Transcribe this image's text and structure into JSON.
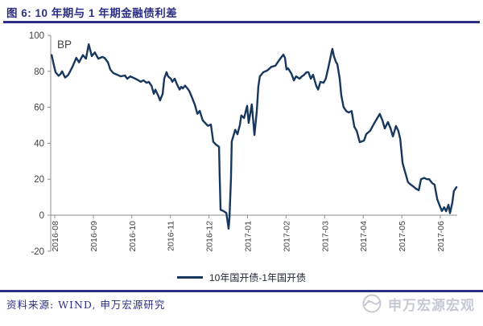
{
  "figure": {
    "title": "图 6: 10 年期与 1 年期金融债利差",
    "source_label": "资料来源: WIND, 申万宏源研究",
    "watermark_text": "申万宏源宏观"
  },
  "colors": {
    "accent_navy": "#2B2F84",
    "line_navy": "#17375E",
    "axis_gray": "#8C8C8C",
    "tick_label_gray": "#404040",
    "watermark_gray": "#C6C8D3"
  },
  "chart_data": {
    "type": "line",
    "title": "10 年期与 1 年期金融债利差",
    "unit_label": "BP",
    "ylabel": "BP",
    "ylim": [
      -20,
      100
    ],
    "yticks": [
      100,
      80,
      60,
      40,
      20,
      0,
      -20
    ],
    "grid": false,
    "x_tick_labels": [
      "2016-08",
      "2016-09",
      "2016-10",
      "2016-11",
      "2016-12",
      "2017-01",
      "2017-02",
      "2017-03",
      "2017-04",
      "2017-05",
      "2017-06"
    ],
    "legend_label": "10年国开债-1年国开债",
    "legend_position": "bottom-center",
    "series": [
      {
        "name": "10年国开债-1年国开债",
        "color": "#17375E",
        "x_unit": "months_since_2016_08",
        "points": [
          [
            -0.08,
            89
          ],
          [
            -0.04,
            85
          ],
          [
            0.02,
            79.5
          ],
          [
            0.1,
            77.5
          ],
          [
            0.15,
            78.5
          ],
          [
            0.19,
            80
          ],
          [
            0.27,
            76.5
          ],
          [
            0.35,
            78
          ],
          [
            0.46,
            82.5
          ],
          [
            0.56,
            87.5
          ],
          [
            0.63,
            85
          ],
          [
            0.73,
            89
          ],
          [
            0.81,
            87
          ],
          [
            0.88,
            95
          ],
          [
            0.96,
            88.5
          ],
          [
            1.04,
            90.5
          ],
          [
            1.13,
            87
          ],
          [
            1.23,
            88
          ],
          [
            1.29,
            87.5
          ],
          [
            1.38,
            85
          ],
          [
            1.44,
            81
          ],
          [
            1.52,
            79
          ],
          [
            1.63,
            78
          ],
          [
            1.71,
            77.2
          ],
          [
            1.82,
            77.7
          ],
          [
            1.88,
            75.9
          ],
          [
            1.96,
            77.2
          ],
          [
            2.05,
            76.3
          ],
          [
            2.17,
            75
          ],
          [
            2.23,
            74.2
          ],
          [
            2.3,
            75
          ],
          [
            2.38,
            73.6
          ],
          [
            2.44,
            74.1
          ],
          [
            2.51,
            72
          ],
          [
            2.57,
            67.5
          ],
          [
            2.61,
            69.8
          ],
          [
            2.69,
            66.1
          ],
          [
            2.73,
            63.8
          ],
          [
            2.8,
            67.5
          ],
          [
            2.84,
            75.9
          ],
          [
            2.9,
            79.5
          ],
          [
            2.94,
            77.2
          ],
          [
            3.01,
            75.9
          ],
          [
            3.05,
            74.2
          ],
          [
            3.11,
            75.9
          ],
          [
            3.17,
            72.8
          ],
          [
            3.24,
            69.8
          ],
          [
            3.28,
            71.4
          ],
          [
            3.32,
            70.5
          ],
          [
            3.38,
            72
          ],
          [
            3.44,
            70.5
          ],
          [
            3.49,
            69
          ],
          [
            3.55,
            66
          ],
          [
            3.63,
            61.6
          ],
          [
            3.7,
            56.4
          ],
          [
            3.76,
            58
          ],
          [
            3.84,
            52.7
          ],
          [
            3.9,
            51.3
          ],
          [
            3.97,
            49.7
          ],
          [
            4.05,
            50.4
          ],
          [
            4.11,
            40.8
          ],
          [
            4.18,
            39.3
          ],
          [
            4.26,
            38
          ],
          [
            4.28,
            20
          ],
          [
            4.3,
            3
          ],
          [
            4.36,
            2.5
          ],
          [
            4.45,
            1.2
          ],
          [
            4.51,
            -7.5
          ],
          [
            4.53,
            -2
          ],
          [
            4.57,
            20
          ],
          [
            4.59,
            41
          ],
          [
            4.68,
            47.5
          ],
          [
            4.74,
            45
          ],
          [
            4.8,
            50
          ],
          [
            4.84,
            55.5
          ],
          [
            4.91,
            54
          ],
          [
            4.99,
            60.8
          ],
          [
            5.03,
            51.3
          ],
          [
            5.11,
            61.6
          ],
          [
            5.18,
            44.6
          ],
          [
            5.24,
            58
          ],
          [
            5.28,
            71.4
          ],
          [
            5.32,
            77.2
          ],
          [
            5.41,
            79.5
          ],
          [
            5.51,
            80.4
          ],
          [
            5.62,
            82.5
          ],
          [
            5.72,
            83.1
          ],
          [
            5.82,
            86.2
          ],
          [
            5.93,
            89.3
          ],
          [
            5.97,
            87.5
          ],
          [
            6.01,
            81
          ],
          [
            6.05,
            81.7
          ],
          [
            6.14,
            78.6
          ],
          [
            6.2,
            75
          ],
          [
            6.26,
            77.2
          ],
          [
            6.35,
            75.9
          ],
          [
            6.41,
            77.2
          ],
          [
            6.47,
            78.1
          ],
          [
            6.53,
            79.5
          ],
          [
            6.58,
            79.5
          ],
          [
            6.64,
            75.9
          ],
          [
            6.7,
            78.1
          ],
          [
            6.78,
            72
          ],
          [
            6.83,
            69.8
          ],
          [
            6.89,
            74.1
          ],
          [
            6.97,
            73.6
          ],
          [
            7.03,
            75.9
          ],
          [
            7.1,
            82.5
          ],
          [
            7.18,
            90.6
          ],
          [
            7.2,
            92.5
          ],
          [
            7.24,
            88.4
          ],
          [
            7.29,
            85.3
          ],
          [
            7.33,
            83.9
          ],
          [
            7.39,
            75.9
          ],
          [
            7.43,
            66.8
          ],
          [
            7.49,
            60.1
          ],
          [
            7.56,
            57.9
          ],
          [
            7.62,
            57.1
          ],
          [
            7.7,
            57.9
          ],
          [
            7.77,
            49.1
          ],
          [
            7.83,
            46.9
          ],
          [
            7.91,
            40.6
          ],
          [
            8.02,
            41.5
          ],
          [
            8.08,
            45.1
          ],
          [
            8.18,
            46.9
          ],
          [
            8.29,
            51.3
          ],
          [
            8.43,
            56.3
          ],
          [
            8.5,
            52.7
          ],
          [
            8.56,
            48.2
          ],
          [
            8.64,
            51.8
          ],
          [
            8.71,
            48.2
          ],
          [
            8.77,
            43.8
          ],
          [
            8.85,
            49.6
          ],
          [
            8.91,
            46.9
          ],
          [
            8.96,
            42.4
          ],
          [
            9.02,
            29
          ],
          [
            9.08,
            24.5
          ],
          [
            9.16,
            18.4
          ],
          [
            9.23,
            17
          ],
          [
            9.29,
            16.1
          ],
          [
            9.37,
            14.7
          ],
          [
            9.44,
            13.9
          ],
          [
            9.5,
            20
          ],
          [
            9.58,
            20.7
          ],
          [
            9.65,
            20
          ],
          [
            9.71,
            20
          ],
          [
            9.79,
            17.8
          ],
          [
            9.85,
            17
          ],
          [
            9.92,
            8.8
          ],
          [
            10.0,
            4.4
          ],
          [
            10.04,
            2.3
          ],
          [
            10.1,
            4.4
          ],
          [
            10.15,
            2.2
          ],
          [
            10.21,
            5.8
          ],
          [
            10.25,
            1.1
          ],
          [
            10.31,
            6.7
          ],
          [
            10.35,
            13.4
          ],
          [
            10.42,
            15.6
          ]
        ]
      }
    ]
  }
}
